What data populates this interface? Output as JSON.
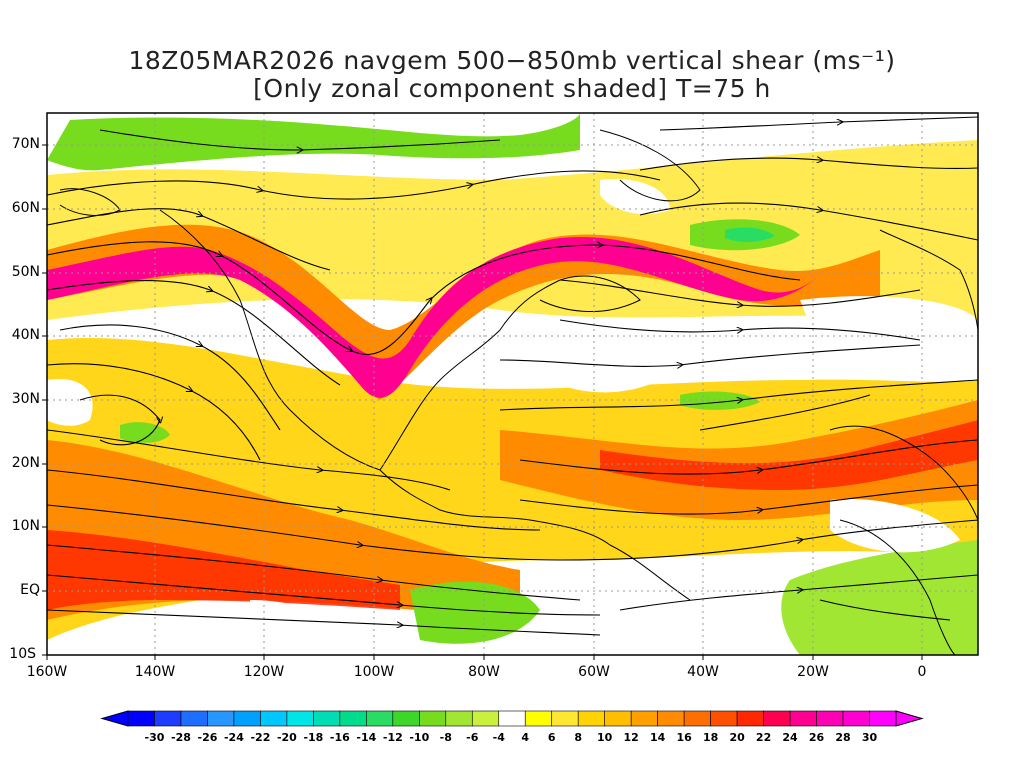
{
  "title": {
    "line1": "18Z05MAR2026 navgem 500−850mb vertical shear (ms⁻¹)",
    "line2": "[Only zonal component shaded] T=75 h"
  },
  "map": {
    "lat_labels": [
      "70N",
      "60N",
      "50N",
      "40N",
      "30N",
      "20N",
      "10N",
      "EQ",
      "10S"
    ],
    "lon_labels": [
      "160W",
      "140W",
      "120W",
      "100W",
      "80W",
      "60W",
      "40W",
      "20W",
      "0"
    ],
    "domain": {
      "lon_range": [
        -160,
        10
      ],
      "lat_range": [
        -10,
        75
      ]
    }
  },
  "colorbar": {
    "labels": [
      "-30",
      "-28",
      "-26",
      "-24",
      "-22",
      "-20",
      "-18",
      "-16",
      "-14",
      "-12",
      "-10",
      "-8",
      "-6",
      "-4",
      "4",
      "6",
      "8",
      "10",
      "12",
      "14",
      "16",
      "18",
      "20",
      "22",
      "24",
      "26",
      "28",
      "30"
    ],
    "colors": [
      "#0000ff",
      "#1e3cff",
      "#1e6eff",
      "#2896ff",
      "#00a0ff",
      "#00c8ff",
      "#00e6e6",
      "#00dcb4",
      "#00dc8c",
      "#28dc64",
      "#3cd728",
      "#78dc1e",
      "#a0e632",
      "#c8f03c",
      "#ffffff",
      "#ffff00",
      "#ffe632",
      "#ffd200",
      "#ffbe00",
      "#ffa000",
      "#ff8c00",
      "#ff6e00",
      "#ff5000",
      "#ff2800",
      "#ff0050",
      "#ff0090",
      "#ff00b4",
      "#ff00d2",
      "#ff00ff"
    ]
  }
}
